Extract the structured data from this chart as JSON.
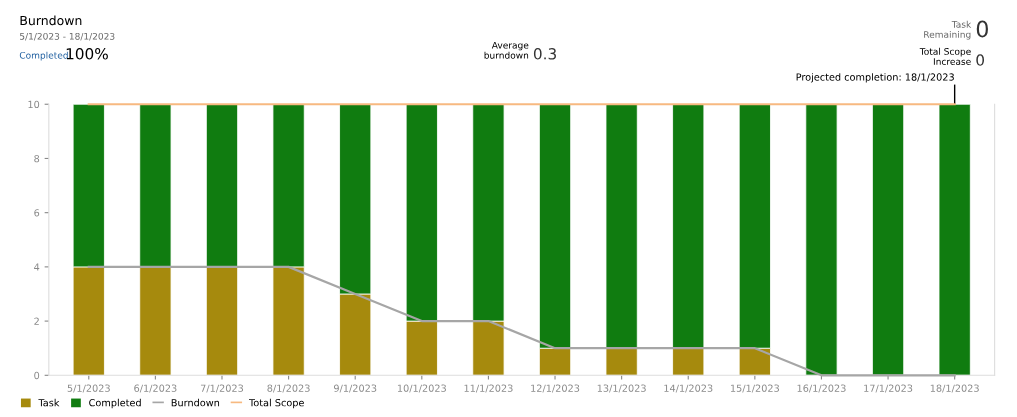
{
  "chart_data": {
    "type": "bar",
    "title": "Burndown",
    "subtitle": "5/1/2023 - 18/1/2023",
    "categories": [
      "5/1/2023",
      "6/1/2023",
      "7/1/2023",
      "8/1/2023",
      "9/1/2023",
      "10/1/2023",
      "11/1/2023",
      "12/1/2023",
      "13/1/2023",
      "14/1/2023",
      "15/1/2023",
      "16/1/2023",
      "17/1/2023",
      "18/1/2023"
    ],
    "stacked": true,
    "series": [
      {
        "name": "Task",
        "color": "#a68a0d",
        "values": [
          4,
          4,
          4,
          4,
          3,
          2,
          2,
          1,
          1,
          1,
          1,
          0,
          0,
          0
        ]
      },
      {
        "name": "Completed",
        "color": "#107c10",
        "values": [
          6,
          6,
          6,
          6,
          7,
          8,
          8,
          9,
          9,
          9,
          9,
          10,
          10,
          10
        ]
      },
      {
        "name": "Burndown",
        "type": "line",
        "color": "#a6a6a6",
        "values": [
          4,
          4,
          4,
          4,
          3,
          2,
          2,
          1,
          1,
          1,
          1,
          0,
          0,
          0
        ]
      },
      {
        "name": "Total Scope",
        "type": "line",
        "color": "#f7b980",
        "values": [
          10,
          10,
          10,
          10,
          10,
          10,
          10,
          10,
          10,
          10,
          10,
          10,
          10,
          10
        ]
      }
    ],
    "ylim": [
      0,
      10
    ],
    "yticks": [
      0,
      2,
      4,
      6,
      8,
      10
    ],
    "grid": false,
    "legend": "bottom left",
    "marker": "none",
    "line_style": "solid",
    "ref_lines": [
      {
        "axis": "x",
        "value": "18/1/2023",
        "label": "Projected completion: 18/1/2023",
        "color": "#000000"
      }
    ],
    "annotations": [
      "Completed",
      "100%",
      "Average\nburndown",
      "0.3",
      "Task\nRemaining",
      "0",
      "Total Scope\nIncrease",
      "0"
    ]
  }
}
